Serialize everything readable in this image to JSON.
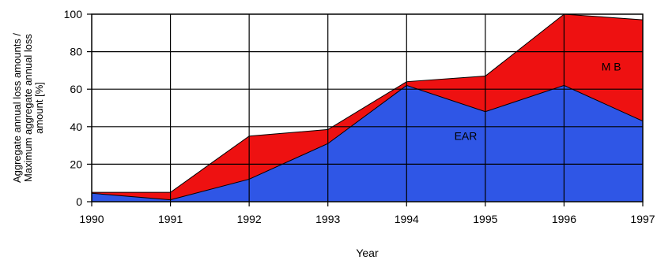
{
  "chart_data": {
    "type": "area",
    "stacked": true,
    "x": [
      1990,
      1991,
      1992,
      1993,
      1994,
      1995,
      1996,
      1997
    ],
    "series": [
      {
        "name": "EAR",
        "values": [
          4.5,
          1,
          12,
          31,
          62,
          48,
          62,
          43
        ],
        "color": "#2f56e6"
      },
      {
        "name": "MB",
        "values": [
          0.5,
          4,
          23,
          7.5,
          2,
          19,
          38,
          54
        ],
        "color": "#ee1111"
      }
    ],
    "xlabel": "Year",
    "ylabel": "Aggregate annual loss amounts / Maximum aggregate annual loss amount [%]",
    "ylabel_lines": [
      "Aggregate annual loss amounts /",
      "Maximum aggregate annual loss",
      "amount [%]"
    ],
    "xlim": [
      1990,
      1997
    ],
    "ylim": [
      0,
      100
    ],
    "yticks": [
      0,
      20,
      40,
      60,
      80,
      100
    ],
    "xticks": [
      1990,
      1991,
      1992,
      1993,
      1994,
      1995,
      1996,
      1997
    ],
    "grid": true,
    "legend": "none",
    "annotations": [
      {
        "text": "EAR",
        "x": 1994.75,
        "y": 35
      },
      {
        "text": "M B",
        "x": 1996.6,
        "y": 72
      }
    ]
  }
}
